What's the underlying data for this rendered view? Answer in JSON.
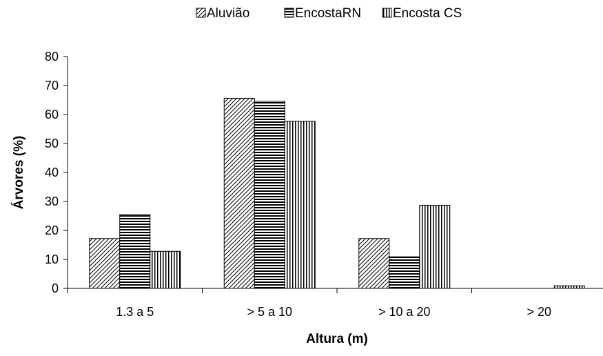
{
  "chart_data": {
    "type": "bar",
    "categories": [
      "1.3 a 5",
      "> 5 a 10",
      "> 10 a 20",
      "> 20"
    ],
    "series": [
      {
        "name": "Aluvião",
        "pattern": "diagonal",
        "values": [
          17.2,
          65.6,
          17.2,
          0
        ]
      },
      {
        "name": "EncostaRN",
        "pattern": "horizontal",
        "values": [
          25.5,
          64.6,
          10.9,
          0
        ]
      },
      {
        "name": "Encosta CS",
        "pattern": "vertical",
        "values": [
          12.8,
          57.7,
          28.7,
          0.9
        ]
      }
    ],
    "xlabel": "Altura (m)",
    "ylabel": "Árvores (%)",
    "ylim": [
      0,
      80
    ],
    "yticks": [
      "0",
      "10",
      "20",
      "30",
      "40",
      "50",
      "60",
      "70",
      "80"
    ],
    "grid": false,
    "legend_position": "top"
  }
}
